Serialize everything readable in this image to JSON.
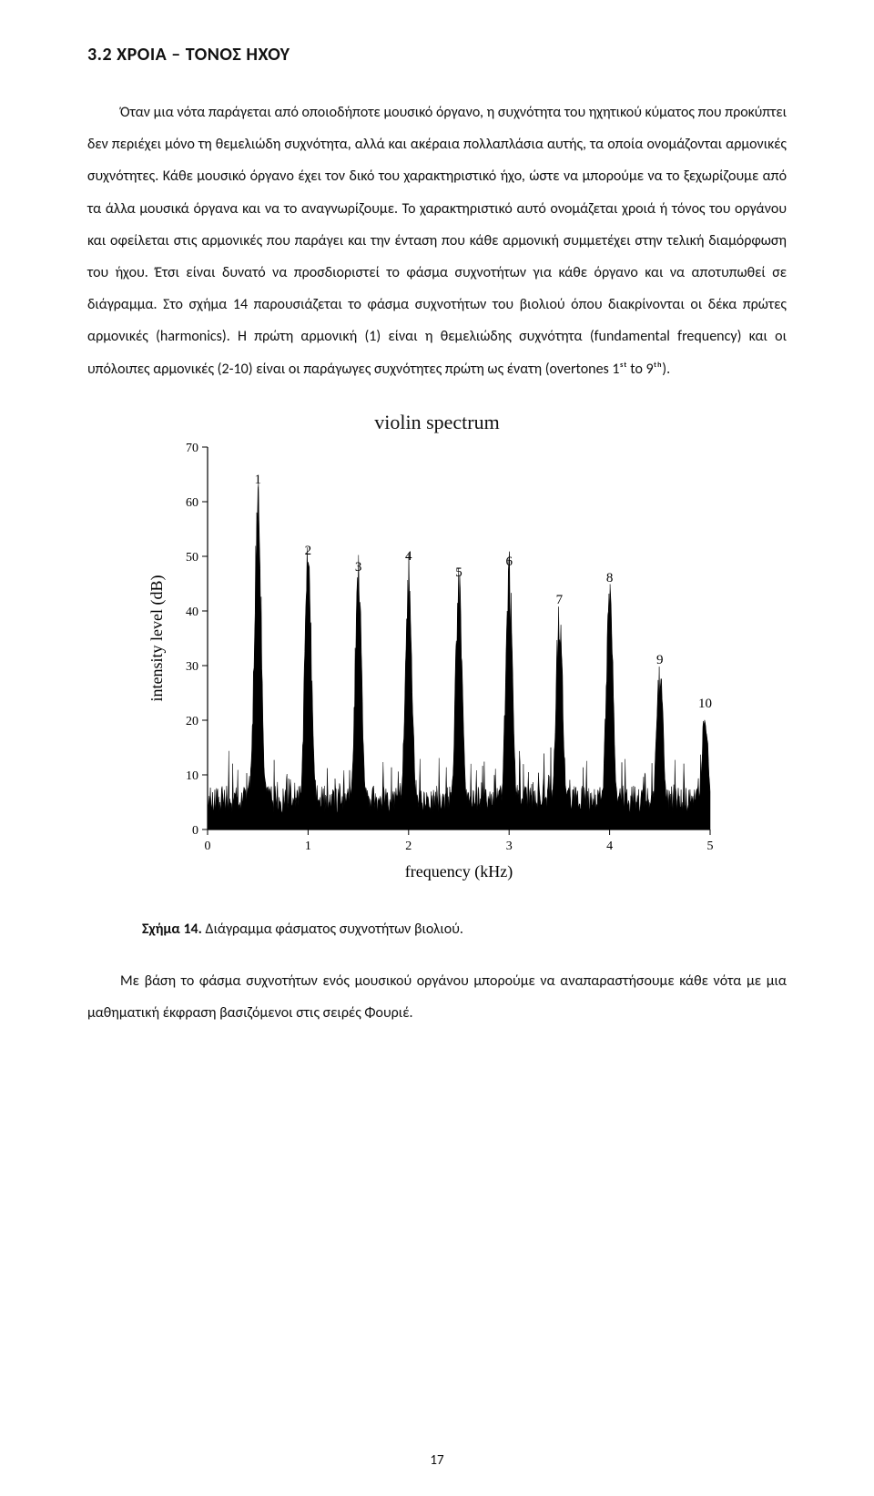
{
  "heading": "3.2   ΧΡΟΙΑ – ΤΟΝΟΣ ΗΧΟΥ",
  "paragraph1": "Όταν μια νότα παράγεται από οποιοδήποτε μουσικό όργανο, η συχνότητα του ηχητικού κύματος που προκύπτει δεν περιέχει μόνο τη θεμελιώδη συχνότητα, αλλά και ακέραια πολλαπλάσια αυτής, τα οποία ονομάζονται αρμονικές συχνότητες. Κάθε μουσικό όργανο έχει τον δικό του χαρακτηριστικό ήχο, ώστε να μπορούμε να το ξεχωρίζουμε από τα άλλα μουσικά όργανα και να το αναγνωρίζουμε. Το χαρακτηριστικό αυτό ονομάζεται χροιά ή τόνος του οργάνου και οφείλεται στις αρμονικές που παράγει και την ένταση που κάθε αρμονική συμμετέχει στην τελική διαμόρφωση του ήχου. Έτσι είναι δυνατό να προσδιοριστεί το φάσμα συχνοτήτων για κάθε όργανο και να αποτυπωθεί σε διάγραμμα. Στο σχήμα 14 παρουσιάζεται το φάσμα συχνοτήτων του βιολιού όπου διακρίνονται οι δέκα πρώτες αρμονικές (harmonics). Η πρώτη αρμονική (1) είναι η θεμελιώδης συχνότητα (fundamental frequency) και οι υπόλοιπες αρμονικές (2-10) είναι οι παράγωγες συχνότητες πρώτη ως ένατη (overtones 1ˢᵗ to 9ᵗʰ).",
  "chart": {
    "title": "violin spectrum",
    "type": "line-spectrum",
    "xlabel": "frequency  (kHz)",
    "ylabel": "intensity level  (dB)",
    "xlim": [
      0,
      5
    ],
    "ylim": [
      0,
      70
    ],
    "xticks": [
      0,
      1,
      2,
      3,
      4,
      5
    ],
    "yticks": [
      0,
      10,
      20,
      30,
      40,
      50,
      60,
      70
    ],
    "axis_color": "#000000",
    "grid_color": "#e0e0e0",
    "background_color": "#ffffff",
    "line_color": "#000000",
    "label_fontsize": 18,
    "tick_fontsize": 14,
    "title_fontsize": 22,
    "harmonics": [
      {
        "n": "1",
        "freq": 0.5,
        "peak": 62
      },
      {
        "n": "2",
        "freq": 1.0,
        "peak": 49
      },
      {
        "n": "3",
        "freq": 1.5,
        "peak": 46
      },
      {
        "n": "4",
        "freq": 2.0,
        "peak": 48
      },
      {
        "n": "5",
        "freq": 2.5,
        "peak": 45
      },
      {
        "n": "6",
        "freq": 3.0,
        "peak": 47
      },
      {
        "n": "7",
        "freq": 3.5,
        "peak": 40
      },
      {
        "n": "8",
        "freq": 4.0,
        "peak": 44
      },
      {
        "n": "9",
        "freq": 4.5,
        "peak": 29
      },
      {
        "n": "10",
        "freq": 4.95,
        "peak": 21
      }
    ],
    "noise_floor": 3
  },
  "caption_bold": "Σχήμα 14.",
  "caption_text": " Διάγραμμα φάσματος συχνοτήτων βιολιού.",
  "paragraph2": "Με βάση το φάσμα συχνοτήτων ενός μουσικού οργάνου μπορούμε να αναπαραστήσουμε κάθε νότα με μια μαθηματική έκφραση βασιζόμενοι στις σειρές Φουριέ.",
  "page_number": "17",
  "colors": {
    "text": "#111111",
    "page_bg": "#ffffff"
  }
}
